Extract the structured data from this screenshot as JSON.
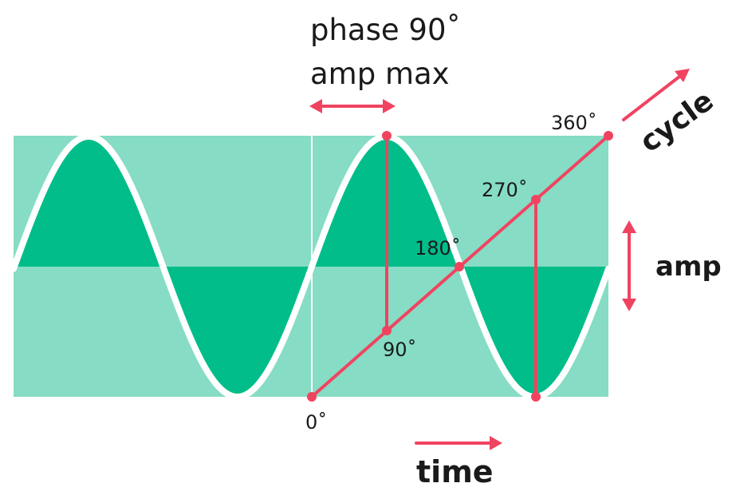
{
  "colors": {
    "panel": "#86dcc4",
    "wave_fill": "#00bd8a",
    "wave_stroke": "#ffffff",
    "accent": "#f04360",
    "text": "#1a1a1a"
  },
  "labels": {
    "phase": "phase 90˚",
    "amp_max": "amp max",
    "cycle": "cycle",
    "amp": "amp",
    "time": "time",
    "deg_0": "0˚",
    "deg_90": "90˚",
    "deg_180": "180˚",
    "deg_270": "270˚",
    "deg_360": "360˚"
  },
  "icons": {
    "phase_arrow": "double-arrow-horizontal-icon",
    "amp_arrow": "double-arrow-vertical-icon",
    "cycle_arrow": "arrow-up-right-icon",
    "time_arrow": "arrow-right-icon"
  }
}
